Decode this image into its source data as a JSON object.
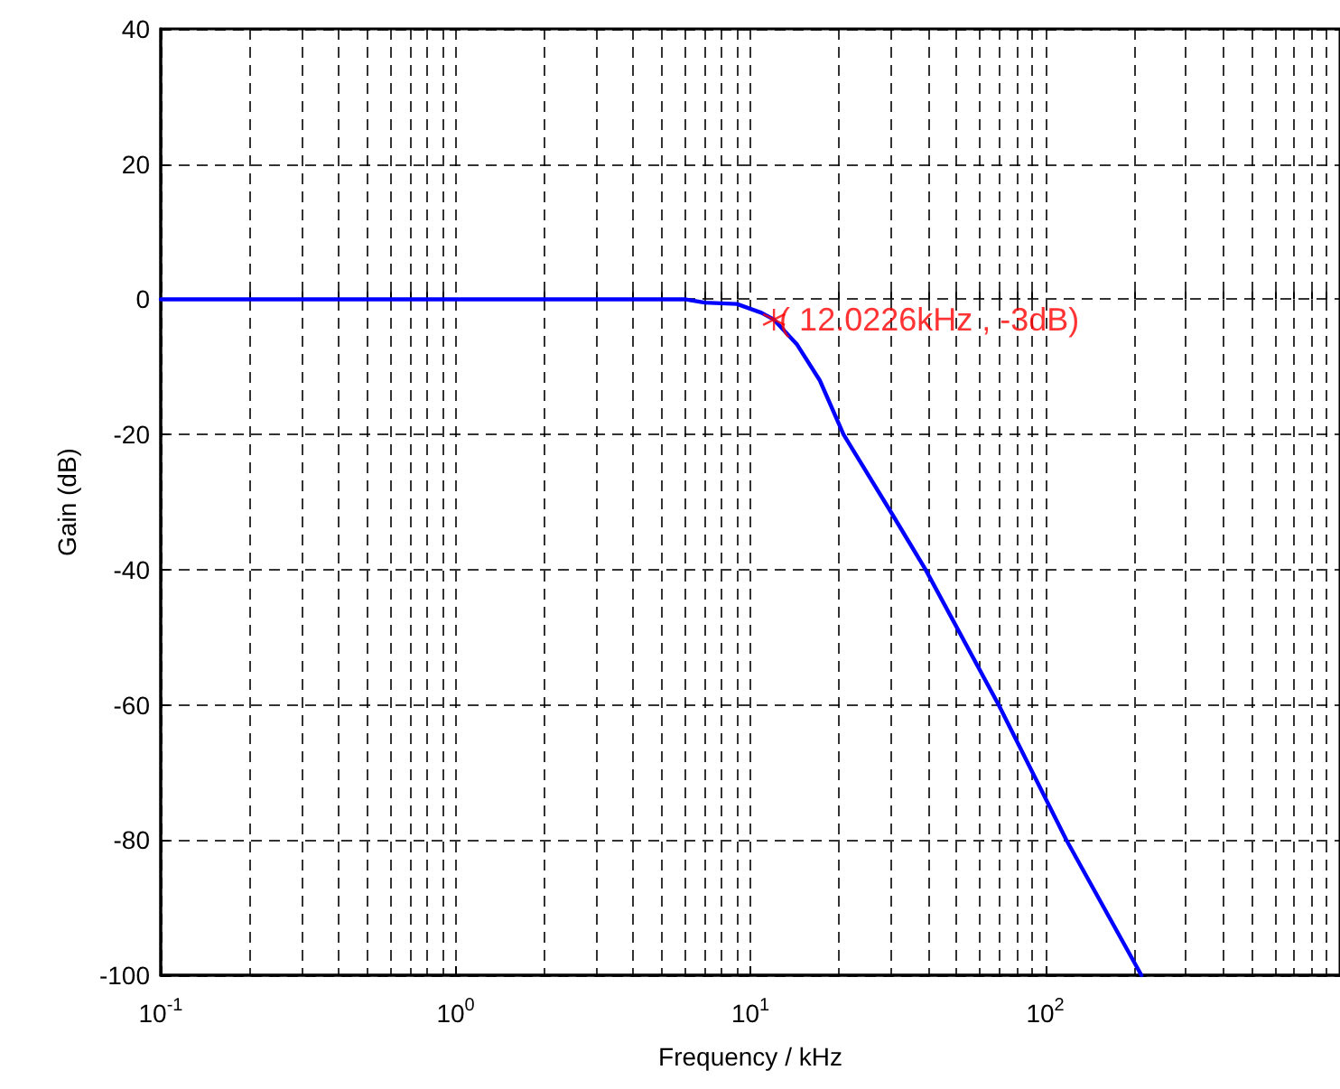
{
  "chart_data": {
    "type": "line",
    "xlabel": "Frequency / kHz",
    "ylabel": "Gain (dB)",
    "log": "x",
    "xlim": [
      0.1,
      1000
    ],
    "xticks": [
      {
        "value": 0.1,
        "label": "10$^{-1}$"
      },
      {
        "value": 1,
        "label": "10$^{0}$"
      },
      {
        "value": 10,
        "label": "10$^{1}$"
      },
      {
        "value": 100,
        "label": "10$^{2}$"
      }
    ],
    "ylim": [
      -100,
      40
    ],
    "yticks": [
      -100,
      -80,
      -60,
      -40,
      -20,
      0,
      20,
      40
    ],
    "grid": true,
    "series": [
      {
        "color": "#0000ff",
        "x": [
          0.1,
          1,
          6,
          7,
          9,
          10.9,
          12.0226,
          14.4,
          17.2,
          20.7,
          30,
          39.3,
          69.5,
          118,
          212
        ],
        "values": [
          0,
          0,
          0,
          -0.5,
          -0.7,
          -2,
          -3,
          -6.7,
          -12,
          -20,
          -31.5,
          -40,
          -60,
          -80,
          -100
        ]
      },
      {
        "type": "scatter",
        "color": "#ff0000",
        "x": [
          12.0226
        ],
        "values": [
          -3
        ]
      }
    ],
    "annotations": [
      {
        "text": "( 12.0226kHz , -3dB)",
        "x": 12.0226,
        "y": -3
      }
    ]
  }
}
